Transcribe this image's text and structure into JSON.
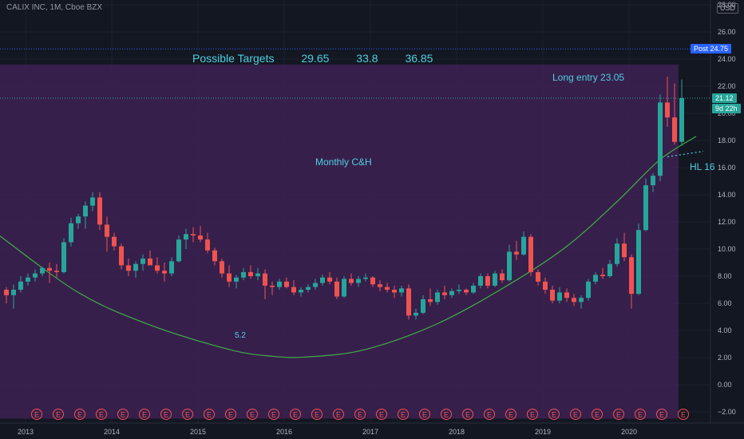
{
  "header": {
    "symbol_line": "CALIX INC, 1M, Cboe BZX",
    "currency": "USD"
  },
  "price_badges": {
    "post_label": "Post",
    "post_value": "24.75",
    "last_value": "21.12",
    "countdown": "9d 22h"
  },
  "annotations": {
    "targets_label": "Possible Targets",
    "target1": "29.65",
    "target2": "33.8",
    "target3": "36.85",
    "long_entry": "Long entry 23.05",
    "pattern_label": "Monthly C&H",
    "cup_bottom_label": "5.2",
    "hl_label": "HL 16"
  },
  "chart_data": {
    "type": "candlestick",
    "symbol": "CALIX INC",
    "interval": "1M",
    "exchange": "Cboe BZX",
    "y_range": [
      -2.5,
      28.5
    ],
    "y_ticks": [
      -2,
      0,
      2,
      4,
      6,
      8,
      10,
      12,
      14,
      16,
      18,
      20,
      22,
      24,
      26,
      28
    ],
    "y_tick_labels": [
      "−2.00",
      "0.00",
      "2.00",
      "4.00",
      "6.00",
      "8.00",
      "10.00",
      "12.00",
      "14.00",
      "16.00",
      "18.00",
      "20.00",
      "22.00",
      "24.00",
      "26.00",
      "28.00"
    ],
    "x_tick_labels": [
      "2013",
      "2014",
      "2015",
      "2016",
      "2017",
      "2018",
      "2019",
      "2020"
    ],
    "x_tick_month_index": [
      0,
      12,
      24,
      36,
      48,
      60,
      72,
      84
    ],
    "earnings_marker_label": "E",
    "earnings_month_index": [
      4,
      7,
      10,
      13,
      16,
      19,
      22,
      25,
      28,
      31,
      34,
      37,
      40,
      43,
      46,
      49,
      52,
      55,
      58,
      61,
      64,
      67,
      70,
      73,
      76,
      79,
      82,
      85,
      88,
      91,
      94
    ],
    "ohlc": [
      [
        7.0,
        7.2,
        6.0,
        6.6
      ],
      [
        6.6,
        7.4,
        5.6,
        7.0
      ],
      [
        7.0,
        8.0,
        6.8,
        7.6
      ],
      [
        7.6,
        8.2,
        7.3,
        7.9
      ],
      [
        7.9,
        8.5,
        7.6,
        8.2
      ],
      [
        8.2,
        8.7,
        8.0,
        8.6
      ],
      [
        8.6,
        9.0,
        7.5,
        8.4
      ],
      [
        8.4,
        8.9,
        7.9,
        8.3
      ],
      [
        8.3,
        10.8,
        8.2,
        10.5
      ],
      [
        10.5,
        12.3,
        10.2,
        11.9
      ],
      [
        11.9,
        12.6,
        11.5,
        12.4
      ],
      [
        12.4,
        13.5,
        11.5,
        13.2
      ],
      [
        13.2,
        14.2,
        12.8,
        13.8
      ],
      [
        13.8,
        14.2,
        11.4,
        11.8
      ],
      [
        11.8,
        12.4,
        9.8,
        10.9
      ],
      [
        10.9,
        11.2,
        9.9,
        10.2
      ],
      [
        10.2,
        10.4,
        8.5,
        8.8
      ],
      [
        8.8,
        9.3,
        8.0,
        8.4
      ],
      [
        8.4,
        9.1,
        7.9,
        8.9
      ],
      [
        8.9,
        9.6,
        8.4,
        9.3
      ],
      [
        9.3,
        9.9,
        8.8,
        8.8
      ],
      [
        8.8,
        9.4,
        8.2,
        8.4
      ],
      [
        8.4,
        9.0,
        7.6,
        8.2
      ],
      [
        8.2,
        9.4,
        8.0,
        9.1
      ],
      [
        9.1,
        11.0,
        9.0,
        10.7
      ],
      [
        10.7,
        11.5,
        10.0,
        11.1
      ],
      [
        11.1,
        11.6,
        10.5,
        11.0
      ],
      [
        11.0,
        11.7,
        10.5,
        10.7
      ],
      [
        10.7,
        11.2,
        9.7,
        9.9
      ],
      [
        9.9,
        10.1,
        8.8,
        9.1
      ],
      [
        9.1,
        9.3,
        7.9,
        8.2
      ],
      [
        8.2,
        8.8,
        7.2,
        7.6
      ],
      [
        7.6,
        8.1,
        7.1,
        7.9
      ],
      [
        7.9,
        8.6,
        7.7,
        8.3
      ],
      [
        8.3,
        8.8,
        7.8,
        8.0
      ],
      [
        8.0,
        8.6,
        7.7,
        8.2
      ],
      [
        8.2,
        8.5,
        6.3,
        7.3
      ],
      [
        7.3,
        7.6,
        6.6,
        7.2
      ],
      [
        7.2,
        7.8,
        7.0,
        7.6
      ],
      [
        7.6,
        7.9,
        7.1,
        7.2
      ],
      [
        7.2,
        7.7,
        6.6,
        6.8
      ],
      [
        6.8,
        7.2,
        6.5,
        7.0
      ],
      [
        7.0,
        7.4,
        6.8,
        7.2
      ],
      [
        7.2,
        7.8,
        7.0,
        7.5
      ],
      [
        7.5,
        8.1,
        7.3,
        7.9
      ],
      [
        7.9,
        8.3,
        7.4,
        7.6
      ],
      [
        7.6,
        7.9,
        6.3,
        6.5
      ],
      [
        6.5,
        8.0,
        6.4,
        7.8
      ],
      [
        7.8,
        8.2,
        7.3,
        7.5
      ],
      [
        7.5,
        8.0,
        7.2,
        7.8
      ],
      [
        7.8,
        8.2,
        7.6,
        7.9
      ],
      [
        7.9,
        8.0,
        7.2,
        7.4
      ],
      [
        7.4,
        7.7,
        6.9,
        7.2
      ],
      [
        7.2,
        7.5,
        6.8,
        7.0
      ],
      [
        7.0,
        7.3,
        6.4,
        6.8
      ],
      [
        6.8,
        7.3,
        6.5,
        7.1
      ],
      [
        7.1,
        7.4,
        4.8,
        5.1
      ],
      [
        5.1,
        5.6,
        4.8,
        5.3
      ],
      [
        5.3,
        6.6,
        5.2,
        6.3
      ],
      [
        6.3,
        7.1,
        5.8,
        6.1
      ],
      [
        6.1,
        7.0,
        5.9,
        6.8
      ],
      [
        6.8,
        7.3,
        6.3,
        6.6
      ],
      [
        6.6,
        7.1,
        6.4,
        6.9
      ],
      [
        6.9,
        7.4,
        6.7,
        7.0
      ],
      [
        7.0,
        7.1,
        6.6,
        6.8
      ],
      [
        6.8,
        7.5,
        6.7,
        7.3
      ],
      [
        7.3,
        8.2,
        7.1,
        8.0
      ],
      [
        8.0,
        8.2,
        7.1,
        7.3
      ],
      [
        7.3,
        8.4,
        7.2,
        8.2
      ],
      [
        8.2,
        8.5,
        7.5,
        7.7
      ],
      [
        7.7,
        10.3,
        7.6,
        9.8
      ],
      [
        9.8,
        10.6,
        9.2,
        9.6
      ],
      [
        9.6,
        11.3,
        9.5,
        10.9
      ],
      [
        10.9,
        11.1,
        8.0,
        8.3
      ],
      [
        8.3,
        8.5,
        7.3,
        7.6
      ],
      [
        7.6,
        7.9,
        6.7,
        7.0
      ],
      [
        7.0,
        7.3,
        6.0,
        6.2
      ],
      [
        6.2,
        7.2,
        6.0,
        6.8
      ],
      [
        6.8,
        7.1,
        6.1,
        6.4
      ],
      [
        6.4,
        6.7,
        5.8,
        6.1
      ],
      [
        6.1,
        6.6,
        5.6,
        6.4
      ],
      [
        6.4,
        7.8,
        6.2,
        7.6
      ],
      [
        7.6,
        8.3,
        7.4,
        8.1
      ],
      [
        8.1,
        8.6,
        7.8,
        8.0
      ],
      [
        8.0,
        9.2,
        7.9,
        8.9
      ],
      [
        8.9,
        10.8,
        8.7,
        10.4
      ],
      [
        10.4,
        11.2,
        9.1,
        9.4
      ],
      [
        9.4,
        9.6,
        5.6,
        6.7
      ],
      [
        6.7,
        11.9,
        6.6,
        11.4
      ],
      [
        11.4,
        15.2,
        11.3,
        14.7
      ],
      [
        14.7,
        15.6,
        14.2,
        15.4
      ],
      [
        15.4,
        21.4,
        15.0,
        20.8
      ],
      [
        20.8,
        22.7,
        19.0,
        19.7
      ],
      [
        19.7,
        22.2,
        17.7,
        17.9
      ],
      [
        17.9,
        22.5,
        17.6,
        21.12
      ]
    ],
    "cup_curve_label": "Monthly C&H",
    "cup_curve": [
      [
        -1,
        11.0
      ],
      [
        10,
        6.8
      ],
      [
        20,
        4.4
      ],
      [
        31,
        2.6
      ],
      [
        37,
        2.1
      ],
      [
        42,
        2.05
      ],
      [
        50,
        2.6
      ],
      [
        60,
        4.5
      ],
      [
        70,
        7.4
      ],
      [
        78,
        10.2
      ],
      [
        85,
        13.5
      ],
      [
        91,
        16.6
      ],
      [
        96,
        18.3
      ]
    ],
    "zone_range": [
      -2.5,
      23.6
    ],
    "horizontal_levels": [
      24.75,
      21.12
    ],
    "hl_dotted_from": [
      92,
      16.8
    ],
    "hl_dotted_to": [
      97,
      17.2
    ]
  }
}
